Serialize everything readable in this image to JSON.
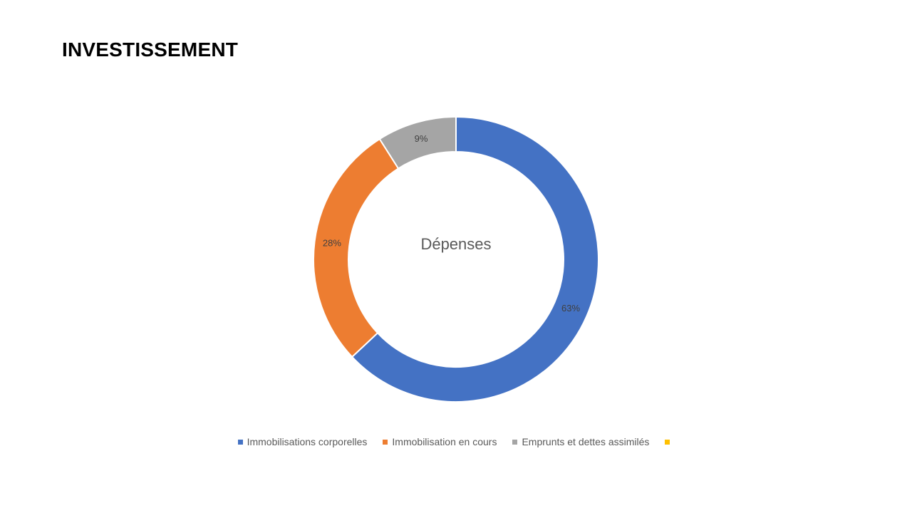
{
  "slide": {
    "title": "INVESTISSEMENT"
  },
  "chart_data": {
    "type": "pie",
    "variant": "doughnut",
    "center_label": "Dépenses",
    "categories": [
      "Immobilisations corporelles",
      "Immobilisation en cours",
      "Emprunts et dettes assimilés",
      ""
    ],
    "values": [
      63,
      28,
      9,
      0
    ],
    "data_labels": [
      "63%",
      "28%",
      "9%",
      ""
    ],
    "colors": [
      "#4472C4",
      "#ED7D31",
      "#A5A5A5",
      "#FFC000"
    ],
    "legend_position": "bottom"
  }
}
